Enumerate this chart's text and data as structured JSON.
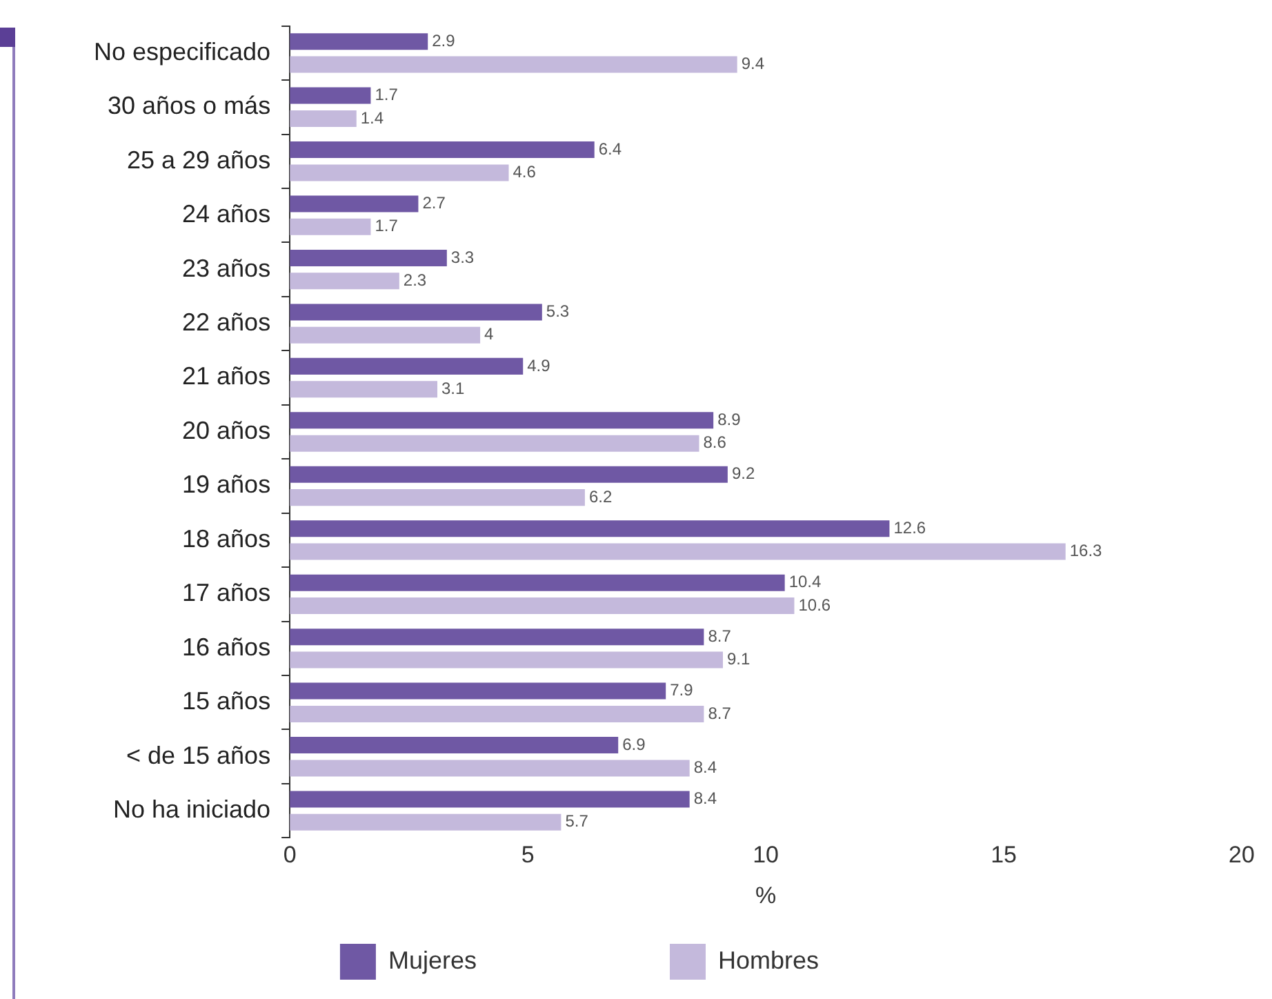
{
  "chart_data": {
    "type": "bar",
    "orientation": "horizontal",
    "xlabel": "%",
    "categories": [
      "No especificado",
      "30 años o más",
      "25 a 29 años",
      "24 años",
      "23 años",
      "22 años",
      "21 años",
      "20 años",
      "19 años",
      "18 años",
      "17 años",
      "16 años",
      "15 años",
      "< de 15 años",
      "No ha iniciado"
    ],
    "series": [
      {
        "name": "Mujeres",
        "color": "#6f58a4",
        "values": [
          2.9,
          1.7,
          6.4,
          2.7,
          3.3,
          5.3,
          4.9,
          8.9,
          9.2,
          12.6,
          10.4,
          8.7,
          7.9,
          6.9,
          8.4
        ]
      },
      {
        "name": "Hombres",
        "color": "#c4b9dc",
        "values": [
          9.4,
          1.4,
          4.6,
          1.7,
          2.3,
          4,
          3.1,
          8.6,
          6.2,
          16.3,
          10.6,
          9.1,
          8.7,
          8.4,
          5.7
        ]
      }
    ],
    "xlim": [
      0,
      20
    ],
    "xticks": [
      0,
      5,
      10,
      15,
      20
    ],
    "grid": false,
    "legend": "bottom",
    "data_labels": true
  }
}
